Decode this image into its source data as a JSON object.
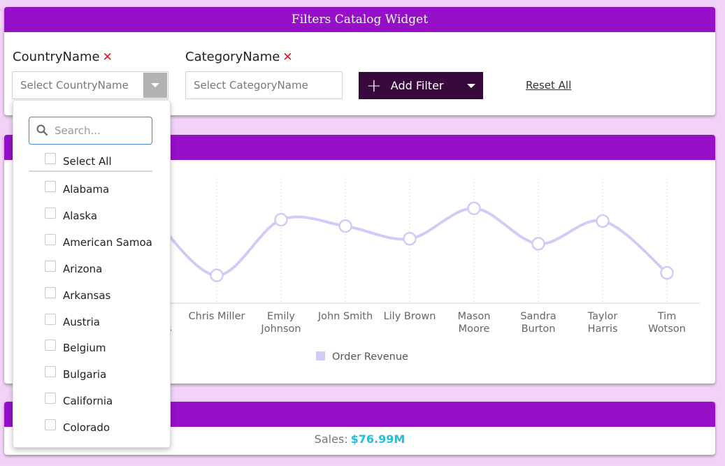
{
  "filters_widget": {
    "title": "Filters Catalog Widget",
    "country": {
      "label": "CountryName",
      "remove": "✕",
      "placeholder": "Select CountryName"
    },
    "category": {
      "label": "CategoryName",
      "remove": "✕",
      "placeholder": "Select CategoryName"
    },
    "add_filter": "Add Filter",
    "reset_all": "Reset All"
  },
  "dropdown": {
    "search_placeholder": "Search...",
    "select_all": "Select All",
    "items": [
      "Alabama",
      "Alaska",
      "American Samoa",
      "Arizona",
      "Arkansas",
      "Austria",
      "Belgium",
      "Bulgaria",
      "California",
      "Colorado"
    ]
  },
  "chart_data": {
    "type": "line",
    "series": [
      {
        "name": "Order Revenue",
        "values": [
          null,
          0.22,
          0.66,
          0.61,
          0.51,
          0.75,
          0.47,
          0.65,
          0.24
        ]
      }
    ],
    "categories": [
      "",
      "Chris Miller",
      "Emily Johnson",
      "John Smith",
      "Lily Brown",
      "Mason Moore",
      "Sandra Burton",
      "Taylor Harris",
      "Tim Wotson"
    ],
    "category_lines": [
      [
        ""
      ],
      [
        "Chris Miller"
      ],
      [
        "Emily",
        "Johnson"
      ],
      [
        "John Smith"
      ],
      [
        "Lily Brown"
      ],
      [
        "Mason",
        "Moore"
      ],
      [
        "Sandra",
        "Burton"
      ],
      [
        "Taylor",
        "Harris"
      ],
      [
        "Tim",
        "Wotson"
      ]
    ],
    "partial_label_fragment": "s",
    "legend": {
      "label": "Order Revenue",
      "position": "bottom-center"
    },
    "colors": {
      "line": "#cfcdf8",
      "grid": "#d8d8d8"
    },
    "grid": true
  },
  "kpi": {
    "label": "Sales:",
    "value": "$76.99M"
  },
  "colors": {
    "header": "#9510c7",
    "button": "#37093d",
    "background": "#f1d3f8",
    "kpi_value": "#1ec0dc",
    "remove_icon": "#e0141e"
  }
}
